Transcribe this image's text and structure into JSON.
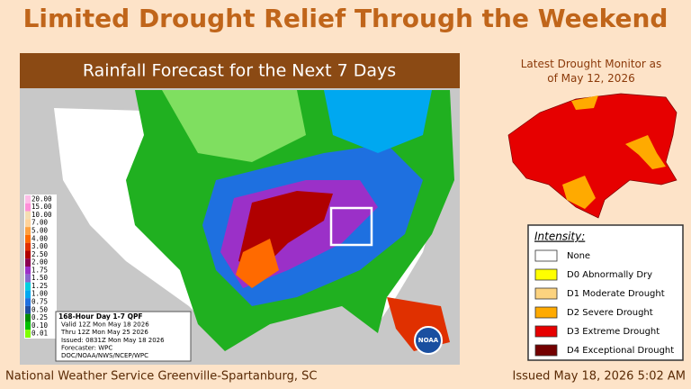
{
  "header": {
    "title": "Limited Drought Relief Through the Weekend"
  },
  "rainfall_map": {
    "title": "Rainfall Forecast for the Next 7 Days",
    "scale": [
      {
        "label": "20.00",
        "color": "#ffbee8"
      },
      {
        "label": "15.00",
        "color": "#ff8fd8"
      },
      {
        "label": "10.00",
        "color": "#f5deb3"
      },
      {
        "label": "7.00",
        "color": "#ffd39b"
      },
      {
        "label": "5.00",
        "color": "#ffa040"
      },
      {
        "label": "4.00",
        "color": "#ff6a00"
      },
      {
        "label": "3.00",
        "color": "#e03000"
      },
      {
        "label": "2.50",
        "color": "#b00000"
      },
      {
        "label": "2.00",
        "color": "#8b0050"
      },
      {
        "label": "1.75",
        "color": "#9b30c8"
      },
      {
        "label": "1.50",
        "color": "#8968cd"
      },
      {
        "label": "1.25",
        "color": "#00d0e0"
      },
      {
        "label": "1.00",
        "color": "#00a8f0"
      },
      {
        "label": "0.75",
        "color": "#1e70e0"
      },
      {
        "label": "0.50",
        "color": "#1e4ea0"
      },
      {
        "label": "0.25",
        "color": "#008b00"
      },
      {
        "label": "0.10",
        "color": "#00c000"
      },
      {
        "label": "0.01",
        "color": "#7fff00"
      }
    ],
    "info": [
      "168-Hour Day 1-7 QPF",
      "Valid 12Z Mon May 18 2026",
      "Thru 12Z Mon May 25 2026",
      "Issued: 0831Z Mon May 18 2026",
      "Forecaster: WPC",
      "DOC/NOAA/NWS/NCEP/WPC"
    ],
    "logo": "NOAA"
  },
  "drought_monitor": {
    "title": "Latest Drought Monitor as of May 12, 2026",
    "legend_title": "Intensity:",
    "legend": [
      {
        "label": "None",
        "color": "#ffffff"
      },
      {
        "label": "D0 Abnormally Dry",
        "color": "#ffff00"
      },
      {
        "label": "D1 Moderate Drought",
        "color": "#fcd37f"
      },
      {
        "label": "D2 Severe Drought",
        "color": "#ffaa00"
      },
      {
        "label": "D3 Extreme Drought",
        "color": "#e60000"
      },
      {
        "label": "D4 Exceptional Drought",
        "color": "#730000"
      }
    ]
  },
  "footer": {
    "left": "National Weather Service Greenville-Spartanburg, SC",
    "right": "Issued May 18, 2026 5:02 AM"
  }
}
